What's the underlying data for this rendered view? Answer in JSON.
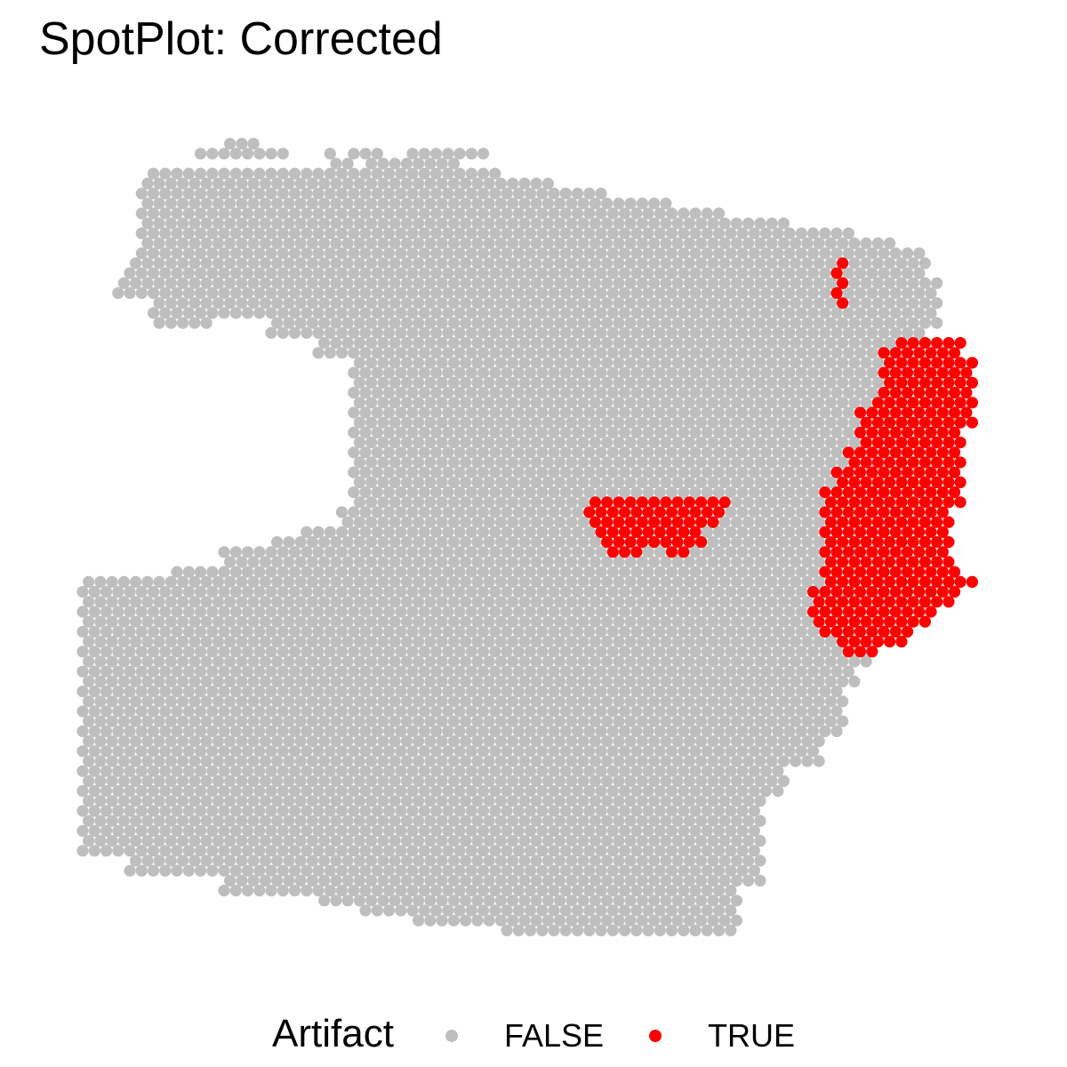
{
  "chart_data": {
    "type": "scatter",
    "title": "SpotPlot: Corrected",
    "xlabel": "",
    "ylabel": "",
    "grid": false,
    "legend_position": "bottom",
    "legend": {
      "title": "Artifact",
      "entries": [
        {
          "label": "FALSE",
          "color": "#bebebe"
        },
        {
          "label": "TRUE",
          "color": "#ff0000"
        }
      ]
    },
    "spot_grid": {
      "x_range": [
        0,
        79
      ],
      "y_range": [
        0,
        68
      ],
      "y_direction": "down"
    },
    "tissue_region": {
      "value": "FALSE",
      "polygons": [
        [
          [
            61,
            4
          ],
          [
            23,
            4
          ],
          [
            21,
            6
          ],
          [
            6,
            6
          ],
          [
            6,
            7
          ],
          [
            5,
            7
          ],
          [
            5,
            15
          ],
          [
            4,
            15
          ],
          [
            4,
            17
          ],
          [
            3,
            17
          ],
          [
            3,
            19
          ],
          [
            6,
            19
          ],
          [
            6,
            22
          ],
          [
            11,
            22
          ],
          [
            11,
            21
          ],
          [
            16,
            21
          ],
          [
            16,
            23
          ],
          [
            20,
            23
          ],
          [
            20,
            25
          ],
          [
            23,
            25
          ],
          [
            23,
            40
          ],
          [
            22,
            40
          ],
          [
            22,
            42
          ],
          [
            19,
            42
          ],
          [
            19,
            43
          ],
          [
            16,
            43
          ],
          [
            16,
            44
          ],
          [
            12,
            44
          ],
          [
            12,
            46
          ],
          [
            8,
            46
          ],
          [
            8,
            47
          ],
          [
            0,
            47
          ],
          [
            0,
            75
          ],
          [
            4,
            75
          ],
          [
            4,
            77
          ],
          [
            12,
            77
          ],
          [
            12,
            79
          ],
          [
            20,
            79
          ],
          [
            20,
            80
          ],
          [
            24,
            80
          ],
          [
            24,
            81
          ],
          [
            28,
            81
          ],
          [
            28,
            82
          ],
          [
            36,
            82
          ],
          [
            36,
            83
          ],
          [
            40,
            83
          ],
          [
            40,
            84
          ],
          [
            56,
            84
          ],
          [
            56,
            78
          ],
          [
            58,
            78
          ],
          [
            58,
            69
          ],
          [
            60,
            69
          ],
          [
            60,
            66
          ],
          [
            63,
            66
          ],
          [
            63,
            63
          ],
          [
            65,
            63
          ],
          [
            65,
            58
          ],
          [
            66,
            58
          ],
          [
            66,
            56
          ],
          [
            67,
            56
          ],
          [
            67,
            53
          ],
          [
            68,
            53
          ],
          [
            68,
            50
          ],
          [
            69,
            50
          ],
          [
            69,
            45
          ],
          [
            70,
            45
          ],
          [
            70,
            38
          ],
          [
            71,
            38
          ],
          [
            71,
            30
          ],
          [
            72,
            30
          ],
          [
            72,
            22
          ],
          [
            73,
            22
          ],
          [
            73,
            17
          ],
          [
            72,
            17
          ],
          [
            72,
            14
          ],
          [
            69,
            14
          ],
          [
            69,
            13
          ],
          [
            66,
            13
          ],
          [
            66,
            12
          ],
          [
            60,
            12
          ],
          [
            60,
            11
          ],
          [
            55,
            11
          ],
          [
            55,
            10
          ],
          [
            50,
            10
          ],
          [
            50,
            9
          ],
          [
            45,
            9
          ],
          [
            45,
            8
          ],
          [
            40,
            8
          ],
          [
            40,
            7
          ],
          [
            36,
            7
          ],
          [
            36,
            6
          ],
          [
            32,
            6
          ],
          [
            32,
            5
          ],
          [
            28,
            5
          ],
          [
            28,
            4
          ],
          [
            26,
            4
          ],
          [
            26,
            5
          ],
          [
            24,
            5
          ],
          [
            24,
            6
          ],
          [
            23,
            6
          ],
          [
            23,
            4
          ],
          [
            21,
            4
          ],
          [
            21,
            5
          ],
          [
            18,
            5
          ],
          [
            18,
            4
          ],
          [
            15,
            4
          ],
          [
            15,
            3
          ],
          [
            12,
            3
          ],
          [
            12,
            4
          ],
          [
            10,
            4
          ],
          [
            10,
            5
          ]
        ]
      ]
    },
    "clusters": [
      {
        "value": "TRUE",
        "name": "",
        "cells": [
          [
            64,
            15
          ],
          [
            64,
            16
          ],
          [
            64,
            17
          ],
          [
            64,
            18
          ],
          [
            64,
            19
          ]
        ]
      },
      {
        "value": "TRUE",
        "name": "",
        "rows": [
          {
            "y": 39,
            "x": [
              43,
              54
            ]
          },
          {
            "y": 40,
            "x": [
              43,
              54
            ]
          },
          {
            "y": 41,
            "x": [
              43,
              53
            ]
          },
          {
            "y": 42,
            "x": [
              44,
              52
            ]
          },
          {
            "y": 43,
            "x": [
              44,
              52
            ]
          },
          {
            "y": 44,
            "x": [
              45,
              47
            ]
          },
          {
            "y": 44,
            "x": [
              50,
              51
            ]
          }
        ]
      },
      {
        "value": "TRUE",
        "name": "",
        "rows": [
          {
            "y": 23,
            "x": [
              69,
              74
            ]
          },
          {
            "y": 24,
            "x": [
              68,
              74
            ]
          },
          {
            "y": 25,
            "x": [
              68,
              75
            ]
          },
          {
            "y": 26,
            "x": [
              68,
              75
            ]
          },
          {
            "y": 27,
            "x": [
              68,
              75
            ]
          },
          {
            "y": 28,
            "x": [
              68,
              75
            ]
          },
          {
            "y": 29,
            "x": [
              67,
              75
            ]
          },
          {
            "y": 30,
            "x": [
              66,
              75
            ]
          },
          {
            "y": 31,
            "x": [
              66,
              75
            ]
          },
          {
            "y": 32,
            "x": [
              66,
              74
            ]
          },
          {
            "y": 33,
            "x": [
              66,
              74
            ]
          },
          {
            "y": 34,
            "x": [
              65,
              74
            ]
          },
          {
            "y": 35,
            "x": [
              65,
              74
            ]
          },
          {
            "y": 36,
            "x": [
              64,
              74
            ]
          },
          {
            "y": 37,
            "x": [
              64,
              74
            ]
          },
          {
            "y": 38,
            "x": [
              63,
              74
            ]
          },
          {
            "y": 39,
            "x": [
              63,
              74
            ]
          },
          {
            "y": 40,
            "x": [
              63,
              73
            ]
          },
          {
            "y": 41,
            "x": [
              63,
              73
            ]
          },
          {
            "y": 42,
            "x": [
              63,
              73
            ]
          },
          {
            "y": 43,
            "x": [
              63,
              73
            ]
          },
          {
            "y": 44,
            "x": [
              63,
              73
            ]
          },
          {
            "y": 45,
            "x": [
              63,
              73
            ]
          },
          {
            "y": 46,
            "x": [
              63,
              74
            ]
          },
          {
            "y": 47,
            "x": [
              63,
              75
            ]
          },
          {
            "y": 48,
            "x": [
              62,
              74
            ]
          },
          {
            "y": 49,
            "x": [
              62,
              73
            ]
          },
          {
            "y": 50,
            "x": [
              62,
              72
            ]
          },
          {
            "y": 51,
            "x": [
              62,
              71
            ]
          },
          {
            "y": 52,
            "x": [
              63,
              70
            ]
          },
          {
            "y": 53,
            "x": [
              64,
              69
            ]
          },
          {
            "y": 54,
            "x": [
              65,
              67
            ]
          }
        ]
      }
    ]
  }
}
